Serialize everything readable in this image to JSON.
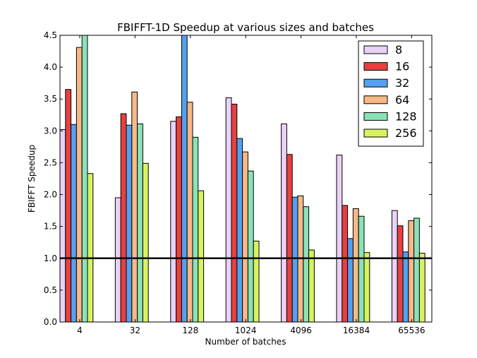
{
  "chart_data": {
    "type": "bar",
    "title": "FBIFFT-1D Speedup at various sizes and batches",
    "xlabel": "Number of batches",
    "ylabel": "FBIFFT Speedup",
    "ylim": [
      0,
      4.5
    ],
    "yticks": [
      "0.0",
      "0.5",
      "1.0",
      "1.5",
      "2.0",
      "2.5",
      "3.0",
      "3.5",
      "4.0",
      "4.5"
    ],
    "categories": [
      "4",
      "32",
      "128",
      "1024",
      "4096",
      "16384",
      "65536"
    ],
    "reference_line": 1.0,
    "legend_position": "top-right",
    "grid": false,
    "series": [
      {
        "name": "8",
        "color": "#e8d2f8",
        "values": [
          3.02,
          1.95,
          3.15,
          3.52,
          3.11,
          2.62,
          1.75
        ]
      },
      {
        "name": "16",
        "color": "#e84040",
        "values": [
          3.65,
          3.27,
          3.22,
          3.42,
          2.63,
          1.83,
          1.51
        ]
      },
      {
        "name": "32",
        "color": "#55a0f0",
        "values": [
          3.1,
          3.09,
          4.6,
          2.88,
          1.96,
          1.31,
          1.1
        ]
      },
      {
        "name": "64",
        "color": "#f8b888",
        "values": [
          4.31,
          3.61,
          3.45,
          2.67,
          1.98,
          1.78,
          1.59
        ]
      },
      {
        "name": "128",
        "color": "#8ae2b8",
        "values": [
          4.6,
          3.11,
          2.9,
          2.37,
          1.81,
          1.66,
          1.63
        ]
      },
      {
        "name": "256",
        "color": "#d8f260",
        "values": [
          2.33,
          2.49,
          2.06,
          1.27,
          1.13,
          1.09,
          1.08
        ]
      }
    ]
  }
}
